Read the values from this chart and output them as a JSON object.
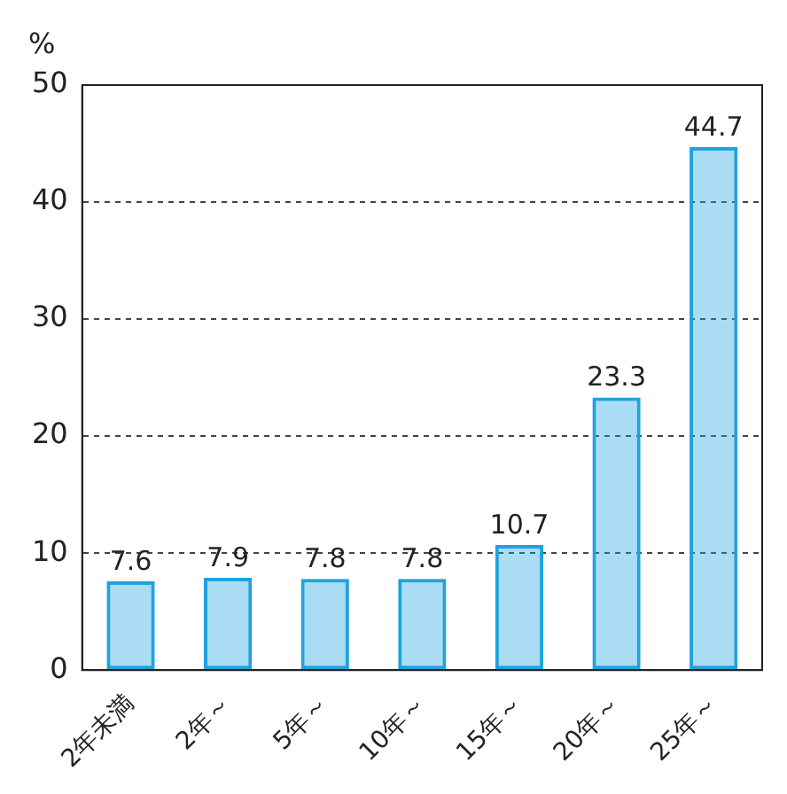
{
  "chart_data": {
    "type": "bar",
    "ylabel": "%",
    "categories": [
      "2年未満",
      "2年～",
      "5年～",
      "10年～",
      "15年～",
      "20年～",
      "25年～"
    ],
    "values": [
      7.6,
      7.9,
      7.8,
      7.8,
      10.7,
      23.3,
      44.7
    ],
    "color": "#1ea3de",
    "ylim": [
      0,
      50
    ],
    "yticks": [
      0,
      10,
      20,
      30,
      40,
      50
    ],
    "grid": "y",
    "legend": false,
    "data_labels": true
  }
}
